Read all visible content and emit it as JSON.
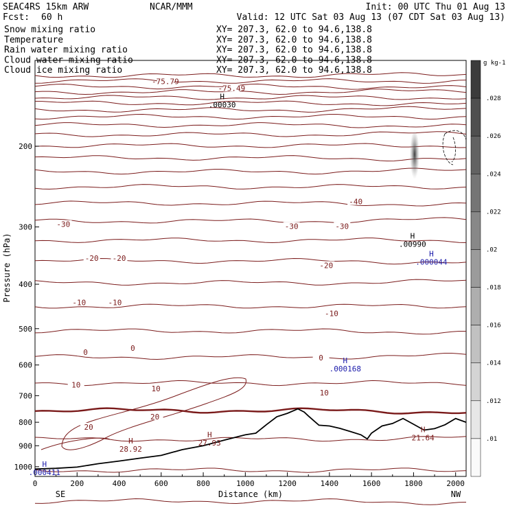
{
  "header": {
    "model": "SEAC4RS 15km ARW",
    "center": "NCAR/MMM",
    "init": "Init: 00 UTC Thu 01 Aug 13",
    "fcst_label": "Fcst:",
    "fcst_value": "60 h",
    "valid": "Valid: 12 UTC Sat 03 Aug 13 (07 CDT Sat 03 Aug 13)"
  },
  "fields": [
    {
      "label": "Snow mixing ratio",
      "color": "#000000",
      "xy": "XY= 207.3, 62.0 to  94.6,138.8"
    },
    {
      "label": "Temperature",
      "color": "#cc0000",
      "xy": "XY= 207.3, 62.0 to  94.6,138.8"
    },
    {
      "label": "Rain water mixing ratio",
      "color": "#cc0000",
      "xy": "XY= 207.3, 62.0 to  94.6,138.8"
    },
    {
      "label": "Cloud water mixing ratio",
      "color": "#0000cc",
      "xy": "XY= 207.3, 62.0 to  94.6,138.8"
    },
    {
      "label": "Cloud ice mixing ratio",
      "color": "#000000",
      "xy": "XY= 207.3, 62.0 to  94.6,138.8"
    }
  ],
  "colors": {
    "temperature": "#7a1a1a",
    "cloud_water": "#1a1aaa",
    "terrain": "#000000",
    "snow": "#000000"
  },
  "chart_data": {
    "type": "cross-section",
    "xlabel": "Distance (km)",
    "ylabel": "Pressure (hPa)",
    "xlim": [
      0,
      2050
    ],
    "ylim": [
      1050,
      130
    ],
    "y_scale": "log-pressure",
    "x_ticks": [
      "0",
      "200",
      "400",
      "600",
      "800",
      "1000",
      "1200",
      "1400",
      "1600",
      "1800",
      "2000"
    ],
    "y_ticks": [
      "200",
      "300",
      "400",
      "500",
      "600",
      "700",
      "800",
      "900",
      "1000"
    ],
    "x_end_labels": {
      "left": "SE",
      "right": "NW"
    },
    "colorbar": {
      "unit": "g kg-1",
      "labels": [
        ".01",
        ".012",
        ".014",
        ".016",
        ".018",
        ".02",
        ".022",
        ".024",
        ".026",
        ".028"
      ],
      "position": "right"
    },
    "temperature_labels": [
      {
        "text": "-30",
        "x": 135,
        "p": 297
      },
      {
        "text": "-30",
        "x": 1220,
        "p": 300
      },
      {
        "text": "-30",
        "x": 1460,
        "p": 300
      },
      {
        "text": "-40",
        "x": 1525,
        "p": 265
      },
      {
        "text": "-20",
        "x": 270,
        "p": 352
      },
      {
        "text": "-20",
        "x": 400,
        "p": 352
      },
      {
        "text": "-20",
        "x": 1385,
        "p": 365
      },
      {
        "text": "-10",
        "x": 210,
        "p": 440
      },
      {
        "text": "-10",
        "x": 380,
        "p": 440
      },
      {
        "text": "-10",
        "x": 1410,
        "p": 465
      },
      {
        "text": "0",
        "x": 240,
        "p": 565
      },
      {
        "text": "0",
        "x": 465,
        "p": 553
      },
      {
        "text": "0",
        "x": 1360,
        "p": 580
      },
      {
        "text": "10",
        "x": 195,
        "p": 665
      },
      {
        "text": "10",
        "x": 575,
        "p": 678
      },
      {
        "text": "10",
        "x": 1375,
        "p": 692
      },
      {
        "text": "20",
        "x": 570,
        "p": 780
      },
      {
        "text": "20",
        "x": 255,
        "p": 822
      },
      {
        "text": "-75.79",
        "x": 620,
        "p": 145
      },
      {
        "text": "-75.49",
        "x": 935,
        "p": 150
      }
    ],
    "highs": [
      {
        "text": "H",
        "value": "28.92",
        "x": 455,
        "p": 890,
        "color": "#7a1a1a"
      },
      {
        "text": "H",
        "value": "27.93",
        "x": 830,
        "p": 862,
        "color": "#7a1a1a"
      },
      {
        "text": "H",
        "value": "21.64",
        "x": 1845,
        "p": 840,
        "color": "#7a1a1a"
      },
      {
        "text": "H",
        "value": ".000168",
        "x": 1475,
        "p": 595,
        "color": "#1a1aaa"
      },
      {
        "text": "H",
        "value": ".000044",
        "x": 1885,
        "p": 348,
        "color": "#1a1aaa"
      },
      {
        "text": "H",
        "value": ".000411",
        "x": 45,
        "p": 1000,
        "color": "#1a1aaa"
      },
      {
        "text": "H",
        "value": ".00990",
        "x": 1795,
        "p": 318,
        "color": "#000000"
      },
      {
        "text": "H",
        "value": ".00030",
        "x": 890,
        "p": 158,
        "color": "#000000"
      }
    ],
    "terrain": {
      "x": [
        0,
        100,
        200,
        300,
        400,
        500,
        600,
        700,
        800,
        900,
        1000,
        1050,
        1100,
        1150,
        1200,
        1250,
        1280,
        1300,
        1350,
        1400,
        1450,
        1500,
        1550,
        1580,
        1600,
        1650,
        1700,
        1750,
        1800,
        1850,
        1900,
        1950,
        2000,
        2050
      ],
      "p": [
        1012,
        1008,
        1002,
        985,
        972,
        958,
        945,
        918,
        900,
        875,
        852,
        845,
        810,
        778,
        765,
        748,
        760,
        775,
        812,
        815,
        825,
        838,
        852,
        870,
        845,
        815,
        805,
        785,
        808,
        832,
        826,
        810,
        785,
        800
      ]
    }
  }
}
